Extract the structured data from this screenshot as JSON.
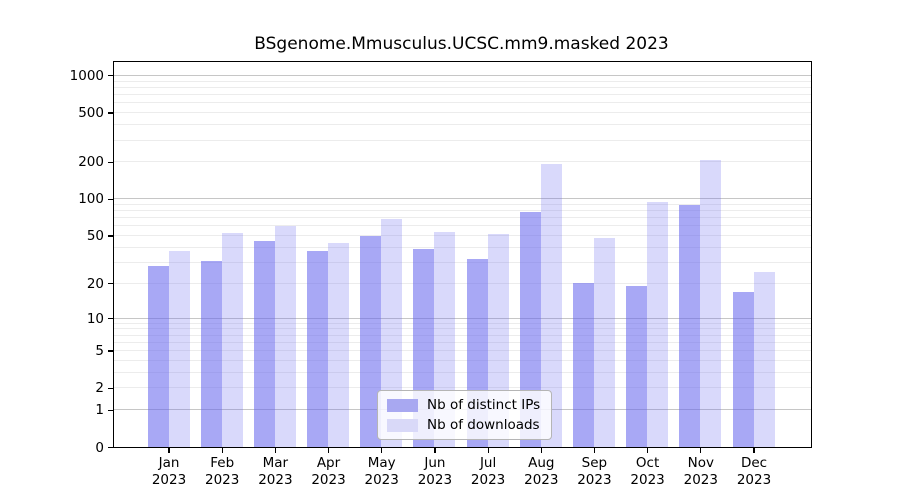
{
  "chart_data": {
    "type": "bar",
    "title": "BSgenome.Mmusculus.UCSC.mm9.masked 2023",
    "categories": [
      "Jan",
      "Feb",
      "Mar",
      "Apr",
      "May",
      "Jun",
      "Jul",
      "Aug",
      "Sep",
      "Oct",
      "Nov",
      "Dec"
    ],
    "category_sub_label": "2023",
    "series": [
      {
        "name": "Nb of distinct IPs",
        "values": [
          28,
          31,
          45,
          37,
          50,
          39,
          32,
          78,
          20,
          19,
          89,
          17
        ],
        "color": "rgba(102,102,238,0.57)",
        "swatch_color": "#a8a8f1"
      },
      {
        "name": "Nb of downloads",
        "values": [
          37,
          52,
          60,
          43,
          68,
          53,
          51,
          193,
          48,
          94,
          208,
          25
        ],
        "color": "rgba(102,102,238,0.25)",
        "swatch_color": "#d9d9f8"
      }
    ],
    "y_ticks": [
      0,
      1,
      2,
      5,
      10,
      20,
      50,
      100,
      200,
      500,
      1000
    ],
    "y_scale": "log1p",
    "ylim": [
      0,
      1270
    ],
    "grid": "on",
    "grid_major": [
      1,
      10,
      100,
      1000
    ],
    "grid_minor": [
      2,
      3,
      4,
      5,
      6,
      7,
      8,
      9,
      20,
      30,
      40,
      50,
      60,
      70,
      80,
      90,
      200,
      300,
      400,
      500,
      600,
      700,
      800,
      900
    ],
    "legend_position": "lower-center",
    "colors": {
      "grid_major": "#c6c6c6",
      "grid_minor": "#ececec",
      "axis": "#000000",
      "text": "#000000",
      "background": "#ffffff"
    }
  }
}
